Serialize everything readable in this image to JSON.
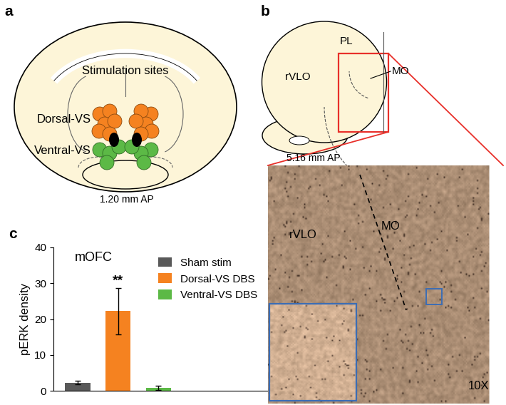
{
  "panel_a": {
    "label": "a",
    "title": "Stimulation sites",
    "sites": [
      {
        "name": "Dorsal-VS",
        "color": "#f58220"
      },
      {
        "name": "Ventral-VS",
        "color": "#5cb946"
      }
    ],
    "section": "1.20 mm AP"
  },
  "panel_b": {
    "label": "b",
    "regions": [
      "PL",
      "rVLO",
      "MO"
    ],
    "section": "5.16 mm AP",
    "micrograph": {
      "regions": [
        "rVLO",
        "MO"
      ],
      "magnification": "10X"
    }
  },
  "chart_data": {
    "label": "c",
    "type": "bar",
    "title": "mOFC",
    "y_label": "pERK density",
    "categories": [
      "Sham stim",
      "Dorsal-VS DBS",
      "Ventral-VS DBS"
    ],
    "values": [
      2.2,
      22.2,
      0.8
    ],
    "errors": [
      0.5,
      6.5,
      0.6
    ],
    "colors": [
      "#595959",
      "#f58220",
      "#5cb946"
    ],
    "annotations": [
      {
        "category": "Dorsal-VS DBS",
        "text": "**"
      }
    ],
    "ylim": [
      0,
      40
    ],
    "yticks": [
      0,
      10,
      20,
      30,
      40
    ],
    "legend": "upper right",
    "tick_labels": "y"
  }
}
